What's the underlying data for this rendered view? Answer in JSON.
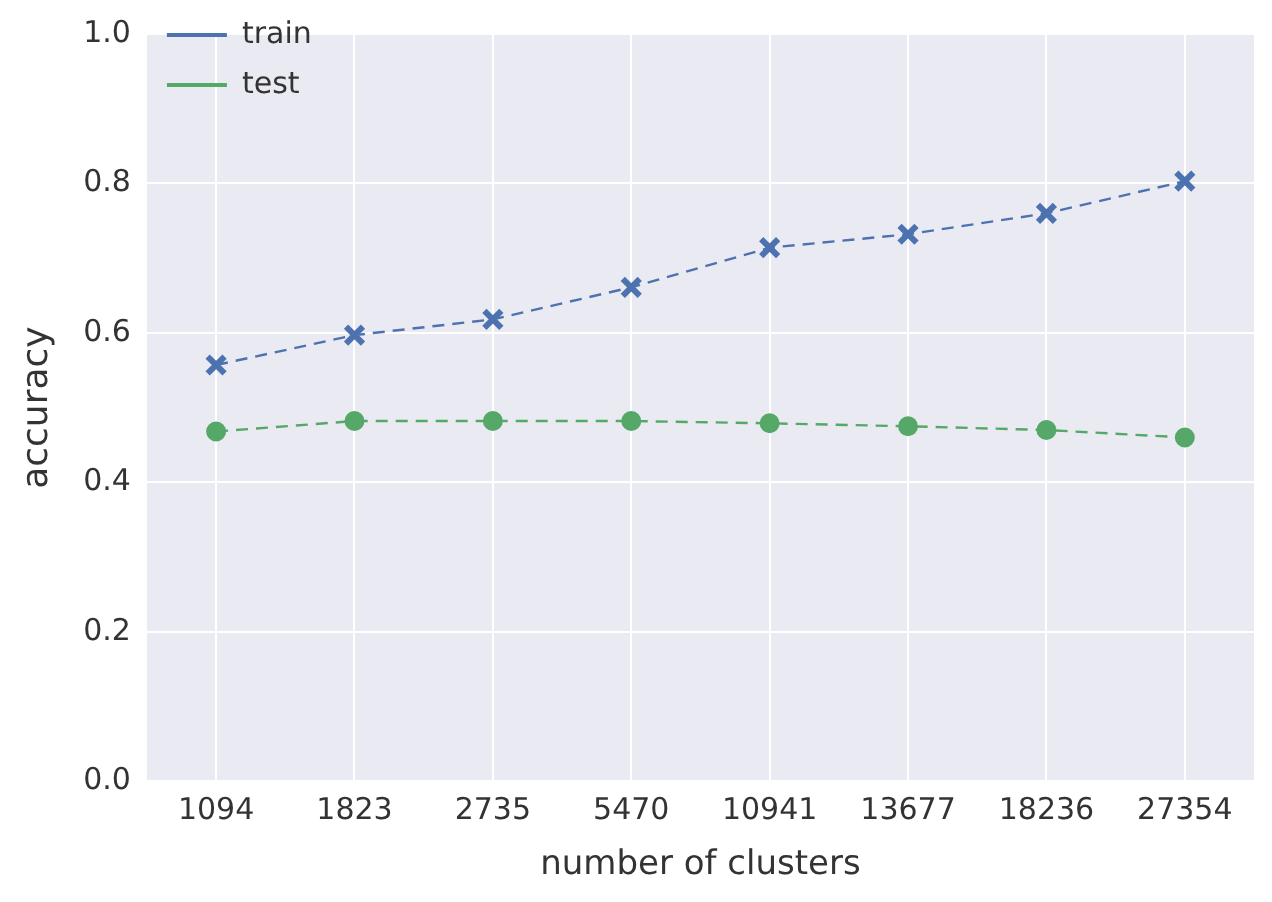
{
  "chart_data": {
    "type": "line",
    "xlabel": "number of clusters",
    "ylabel": "accuracy",
    "categories": [
      "1094",
      "1823",
      "2735",
      "5470",
      "10941",
      "13677",
      "18236",
      "27354"
    ],
    "series": [
      {
        "name": "train",
        "color": "#4c72b0",
        "marker": "cross",
        "values": [
          0.557,
          0.597,
          0.618,
          0.661,
          0.714,
          0.732,
          0.76,
          0.803
        ]
      },
      {
        "name": "test",
        "color": "#55a868",
        "marker": "circle",
        "values": [
          0.468,
          0.482,
          0.482,
          0.482,
          0.479,
          0.475,
          0.47,
          0.46
        ]
      }
    ],
    "ylim": [
      0,
      1
    ],
    "yticks": [
      {
        "value": 0,
        "label": "0.0"
      },
      0.2,
      0.4,
      0.6,
      0.8,
      {
        "value": 1,
        "label": "1.0"
      }
    ],
    "grid": true,
    "legend": "top left",
    "line_style": "dashed"
  }
}
